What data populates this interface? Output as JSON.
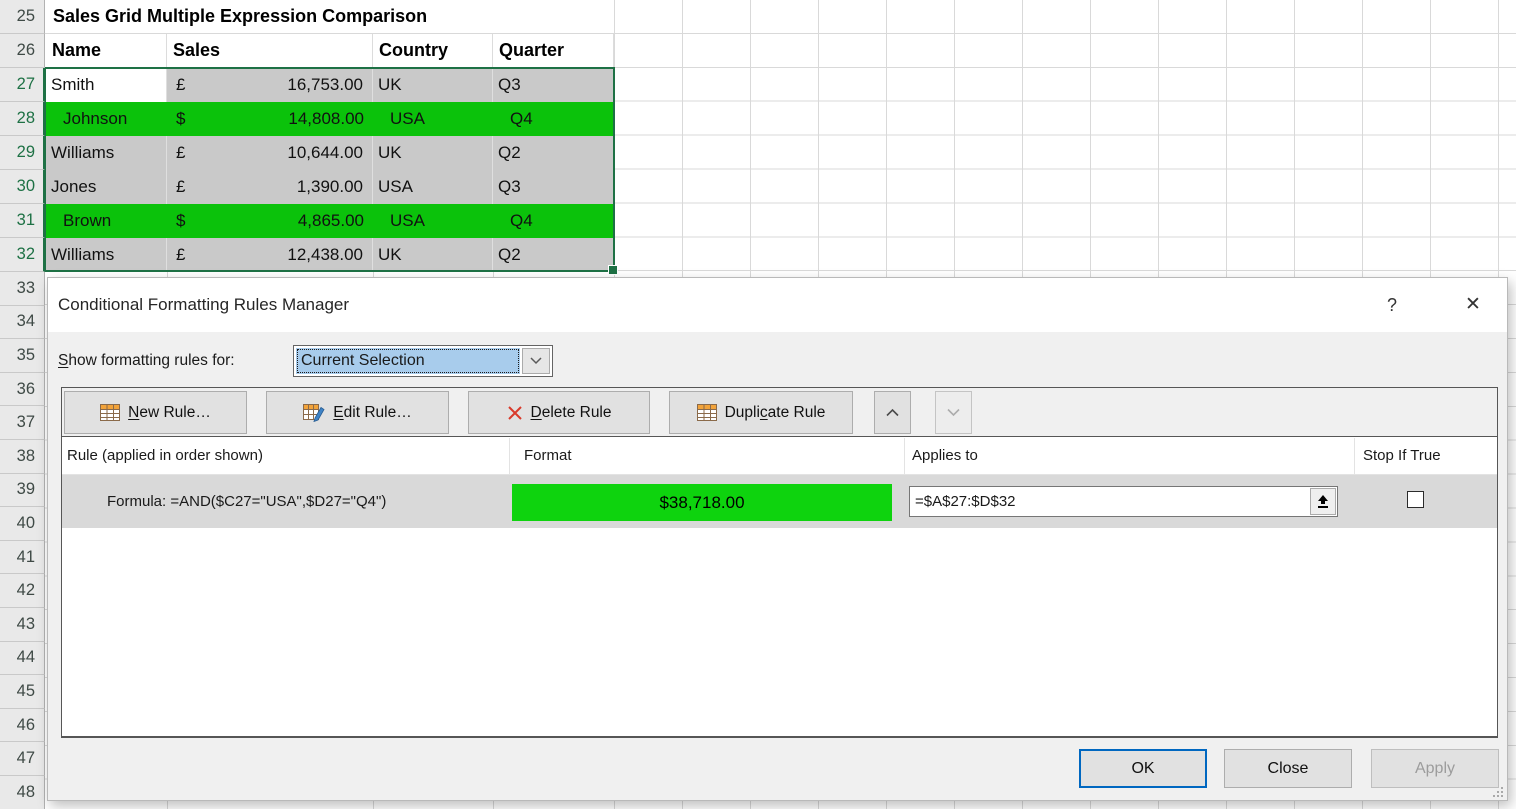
{
  "spreadsheet": {
    "title": "Sales Grid Multiple Expression Comparison",
    "column_headers": [
      "Name",
      "Sales",
      "Country",
      "Quarter"
    ],
    "row_numbers": [
      25,
      26,
      27,
      28,
      29,
      30,
      31,
      32,
      33,
      34,
      35,
      36,
      37,
      38,
      39,
      40,
      41,
      42,
      43,
      44,
      45,
      46,
      47,
      48
    ],
    "selection": {
      "row_start": 27,
      "row_end": 32
    },
    "rows": [
      {
        "name": "Smith",
        "currency": "£",
        "amount": "16,753.00",
        "country": "UK",
        "quarter": "Q3",
        "fill": "gray"
      },
      {
        "name": "Johnson",
        "currency": "$",
        "amount": "14,808.00",
        "country": "USA",
        "quarter": "Q4",
        "fill": "green"
      },
      {
        "name": "Williams",
        "currency": "£",
        "amount": "10,644.00",
        "country": "UK",
        "quarter": "Q2",
        "fill": "gray"
      },
      {
        "name": "Jones",
        "currency": "£",
        "amount": "1,390.00",
        "country": "USA",
        "quarter": "Q3",
        "fill": "gray"
      },
      {
        "name": "Brown",
        "currency": "$",
        "amount": "4,865.00",
        "country": "USA",
        "quarter": "Q4",
        "fill": "green"
      },
      {
        "name": "Williams",
        "currency": "£",
        "amount": "12,438.00",
        "country": "UK",
        "quarter": "Q2",
        "fill": "gray"
      }
    ],
    "colors": {
      "green_fill": "#0BC20B",
      "gray_fill": "#C9C9C9",
      "selection_border": "#1E7145"
    }
  },
  "dialog": {
    "title": "Conditional Formatting Rules Manager",
    "help_icon": "?",
    "close_icon": "✕",
    "show_rules_label": {
      "key": "S",
      "rest": "how formatting rules for:"
    },
    "show_rules_value": "Current Selection",
    "toolbar": {
      "new_rule": {
        "key": "N",
        "rest": "ew Rule…"
      },
      "edit_rule": {
        "key": "E",
        "rest": "dit Rule…"
      },
      "delete_rule": {
        "key": "D",
        "rest": "elete Rule"
      },
      "duplicate_rule": {
        "pre": "Dupli",
        "key": "c",
        "rest": "ate Rule"
      }
    },
    "list": {
      "headers": [
        "Rule (applied in order shown)",
        "Format",
        "Applies to",
        "Stop If True"
      ],
      "rules": [
        {
          "rule": "Formula: =AND($C27=\"USA\",$D27=\"Q4\")",
          "format_text": "$38,718.00",
          "format_color": "#0ED30E",
          "applies_to": "=$A$27:$D$32",
          "stop_if_true": false
        }
      ]
    },
    "buttons": {
      "ok": "OK",
      "close": "Close",
      "apply": "Apply"
    }
  }
}
